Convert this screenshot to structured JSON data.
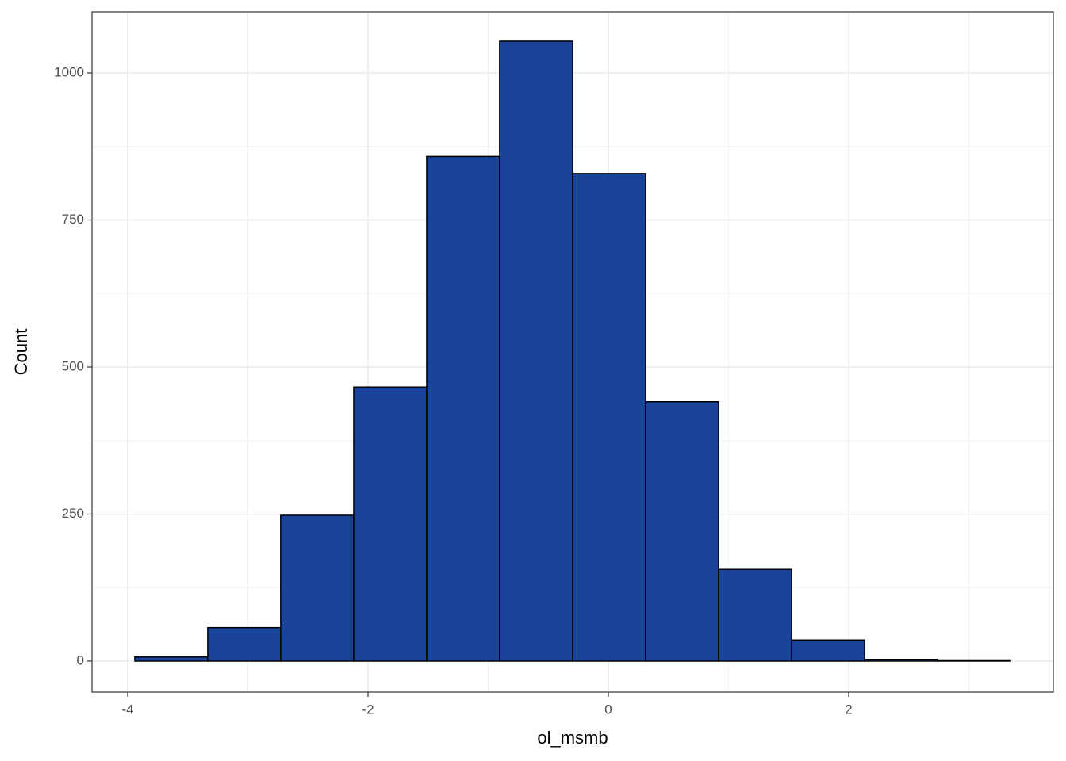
{
  "chart_data": {
    "type": "histogram",
    "x_label": "ol_msmb",
    "y_label": "Count",
    "bins": [
      -3.941,
      -3.334,
      -2.727,
      -2.119,
      -1.512,
      -0.905,
      -0.297,
      0.31,
      0.917,
      1.525,
      2.132,
      2.739,
      3.347
    ],
    "counts": [
      7,
      57,
      248,
      466,
      858,
      1054,
      829,
      441,
      156,
      36,
      3,
      2
    ],
    "color": "#1a4499",
    "edgecolor": "#000000",
    "xlim": [
      -4.297,
      3.703
    ],
    "ylim": [
      -52.6,
      1103.8
    ],
    "xticks": [
      -4,
      -2,
      0,
      2
    ],
    "yticks": [
      0,
      250,
      500,
      750,
      1000
    ],
    "grid": true
  }
}
